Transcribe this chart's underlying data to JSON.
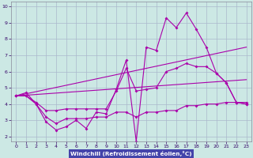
{
  "xlabel": "Windchill (Refroidissement éolien,°C)",
  "x": [
    0,
    1,
    2,
    3,
    4,
    5,
    6,
    7,
    8,
    9,
    10,
    11,
    12,
    13,
    14,
    15,
    16,
    17,
    18,
    19,
    20,
    21,
    22,
    23
  ],
  "line1": [
    4.5,
    4.7,
    4.0,
    2.9,
    2.4,
    2.6,
    3.0,
    2.5,
    3.5,
    3.4,
    4.9,
    6.7,
    1.7,
    7.5,
    7.3,
    9.3,
    8.7,
    9.6,
    8.6,
    7.5,
    5.9,
    5.3,
    4.1,
    4.0
  ],
  "line2": [
    4.5,
    4.5,
    4.1,
    3.6,
    3.6,
    3.7,
    3.7,
    3.7,
    3.7,
    3.7,
    4.8,
    6.2,
    4.8,
    4.9,
    5.0,
    6.0,
    6.2,
    6.5,
    6.3,
    6.3,
    5.9,
    5.3,
    4.1,
    4.0
  ],
  "line3": [
    4.5,
    4.5,
    4.0,
    3.2,
    2.8,
    3.1,
    3.1,
    3.1,
    3.2,
    3.2,
    3.5,
    3.5,
    3.2,
    3.5,
    3.5,
    3.6,
    3.6,
    3.9,
    3.9,
    4.0,
    4.0,
    4.1,
    4.1,
    4.1
  ],
  "trend1_x": [
    0,
    23
  ],
  "trend1_y": [
    4.5,
    7.5
  ],
  "trend2_x": [
    0,
    23
  ],
  "trend2_y": [
    4.5,
    5.5
  ],
  "background_color": "#cce8e4",
  "grid_color": "#aab8cc",
  "line_color": "#aa00aa",
  "label_bg": "#4444aa",
  "label_fg": "#ffffff",
  "ylim": [
    1.7,
    10.3
  ],
  "xlim": [
    -0.5,
    23.5
  ],
  "yticks": [
    2,
    3,
    4,
    5,
    6,
    7,
    8,
    9,
    10
  ],
  "xticks": [
    0,
    1,
    2,
    3,
    4,
    5,
    6,
    7,
    8,
    9,
    10,
    11,
    12,
    13,
    14,
    15,
    16,
    17,
    18,
    19,
    20,
    21,
    22,
    23
  ]
}
